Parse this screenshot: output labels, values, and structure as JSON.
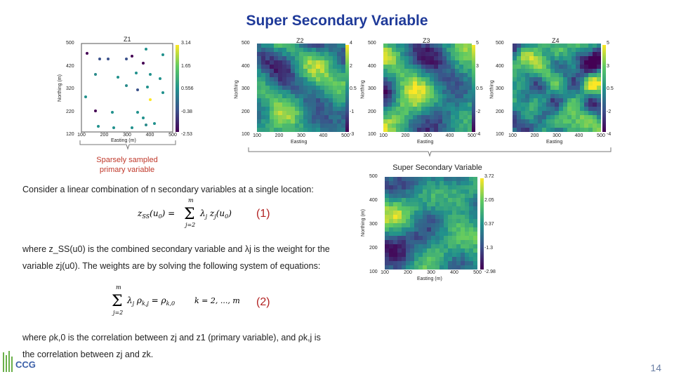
{
  "slide": {
    "title": "Super Secondary Variable",
    "page_number": "14"
  },
  "figures": {
    "z1": {
      "title": "Z1",
      "xlabel": "Easting (m)",
      "ylabel": "Northing (m)",
      "xticks": [
        "100",
        "200",
        "300",
        "400",
        "500"
      ],
      "yticks": [
        "500",
        "420",
        "320",
        "220",
        "120"
      ],
      "cbar": [
        "3.14",
        "1.65",
        "0.556",
        "-0.38",
        "-2.53"
      ]
    },
    "z2": {
      "title": "Z2",
      "xlabel": "Easting",
      "ylabel": "Northing",
      "xticks": [
        "100",
        "200",
        "300",
        "400",
        "500"
      ],
      "yticks": [
        "500",
        "400",
        "300",
        "200",
        "100"
      ],
      "cbar": [
        "4",
        "2",
        "0.5",
        "-1",
        "-3"
      ]
    },
    "z3": {
      "title": "Z3",
      "xlabel": "Easting",
      "ylabel": "Northing",
      "xticks": [
        "100",
        "200",
        "300",
        "400",
        "500"
      ],
      "yticks": [
        "500",
        "400",
        "300",
        "200",
        "100"
      ],
      "cbar": [
        "5",
        "3",
        "0.5",
        "-2",
        "-4"
      ]
    },
    "z4": {
      "title": "Z4",
      "xlabel": "Easting",
      "ylabel": "Northing",
      "xticks": [
        "100",
        "200",
        "300",
        "400",
        "500"
      ],
      "yticks": [
        "500",
        "400",
        "300",
        "200",
        "100"
      ],
      "cbar": [
        "5",
        "3",
        "0.5",
        "-2",
        "-4"
      ]
    },
    "zss": {
      "xlabel": "Easting (m)",
      "ylabel": "Northing (m)",
      "xticks": [
        "100",
        "200",
        "300",
        "400",
        "500"
      ],
      "yticks": [
        "500",
        "400",
        "300",
        "200",
        "100"
      ],
      "cbar": [
        "3.72",
        "2.05",
        "0.37",
        "-1.3",
        "-2.98"
      ]
    }
  },
  "captions": {
    "primary": "Sparsely sampled primary variable",
    "ssv": "Super Secondary Variable"
  },
  "text": {
    "p1": "Consider a linear combination of n secondary variables at a single location:",
    "p2a": "where z_SS(u0) is the combined secondary variable and λj is the weight for the",
    "p2b": "variable zj(u0). The weights are by solving the following system of equations:",
    "p3a": "where ρk,0 is the correlation between zj and z1 (primary variable), and ρk,j is",
    "p3b": "the correlation between zj and zk."
  },
  "equations": {
    "eq1_number": "(1)",
    "eq2_number": "(2)"
  },
  "logo": {
    "text": "CCG"
  },
  "colors": {
    "title": "#1f3a99",
    "caption": "#c0392b",
    "eqnum": "#b22222",
    "points": "#2a8a8a"
  }
}
